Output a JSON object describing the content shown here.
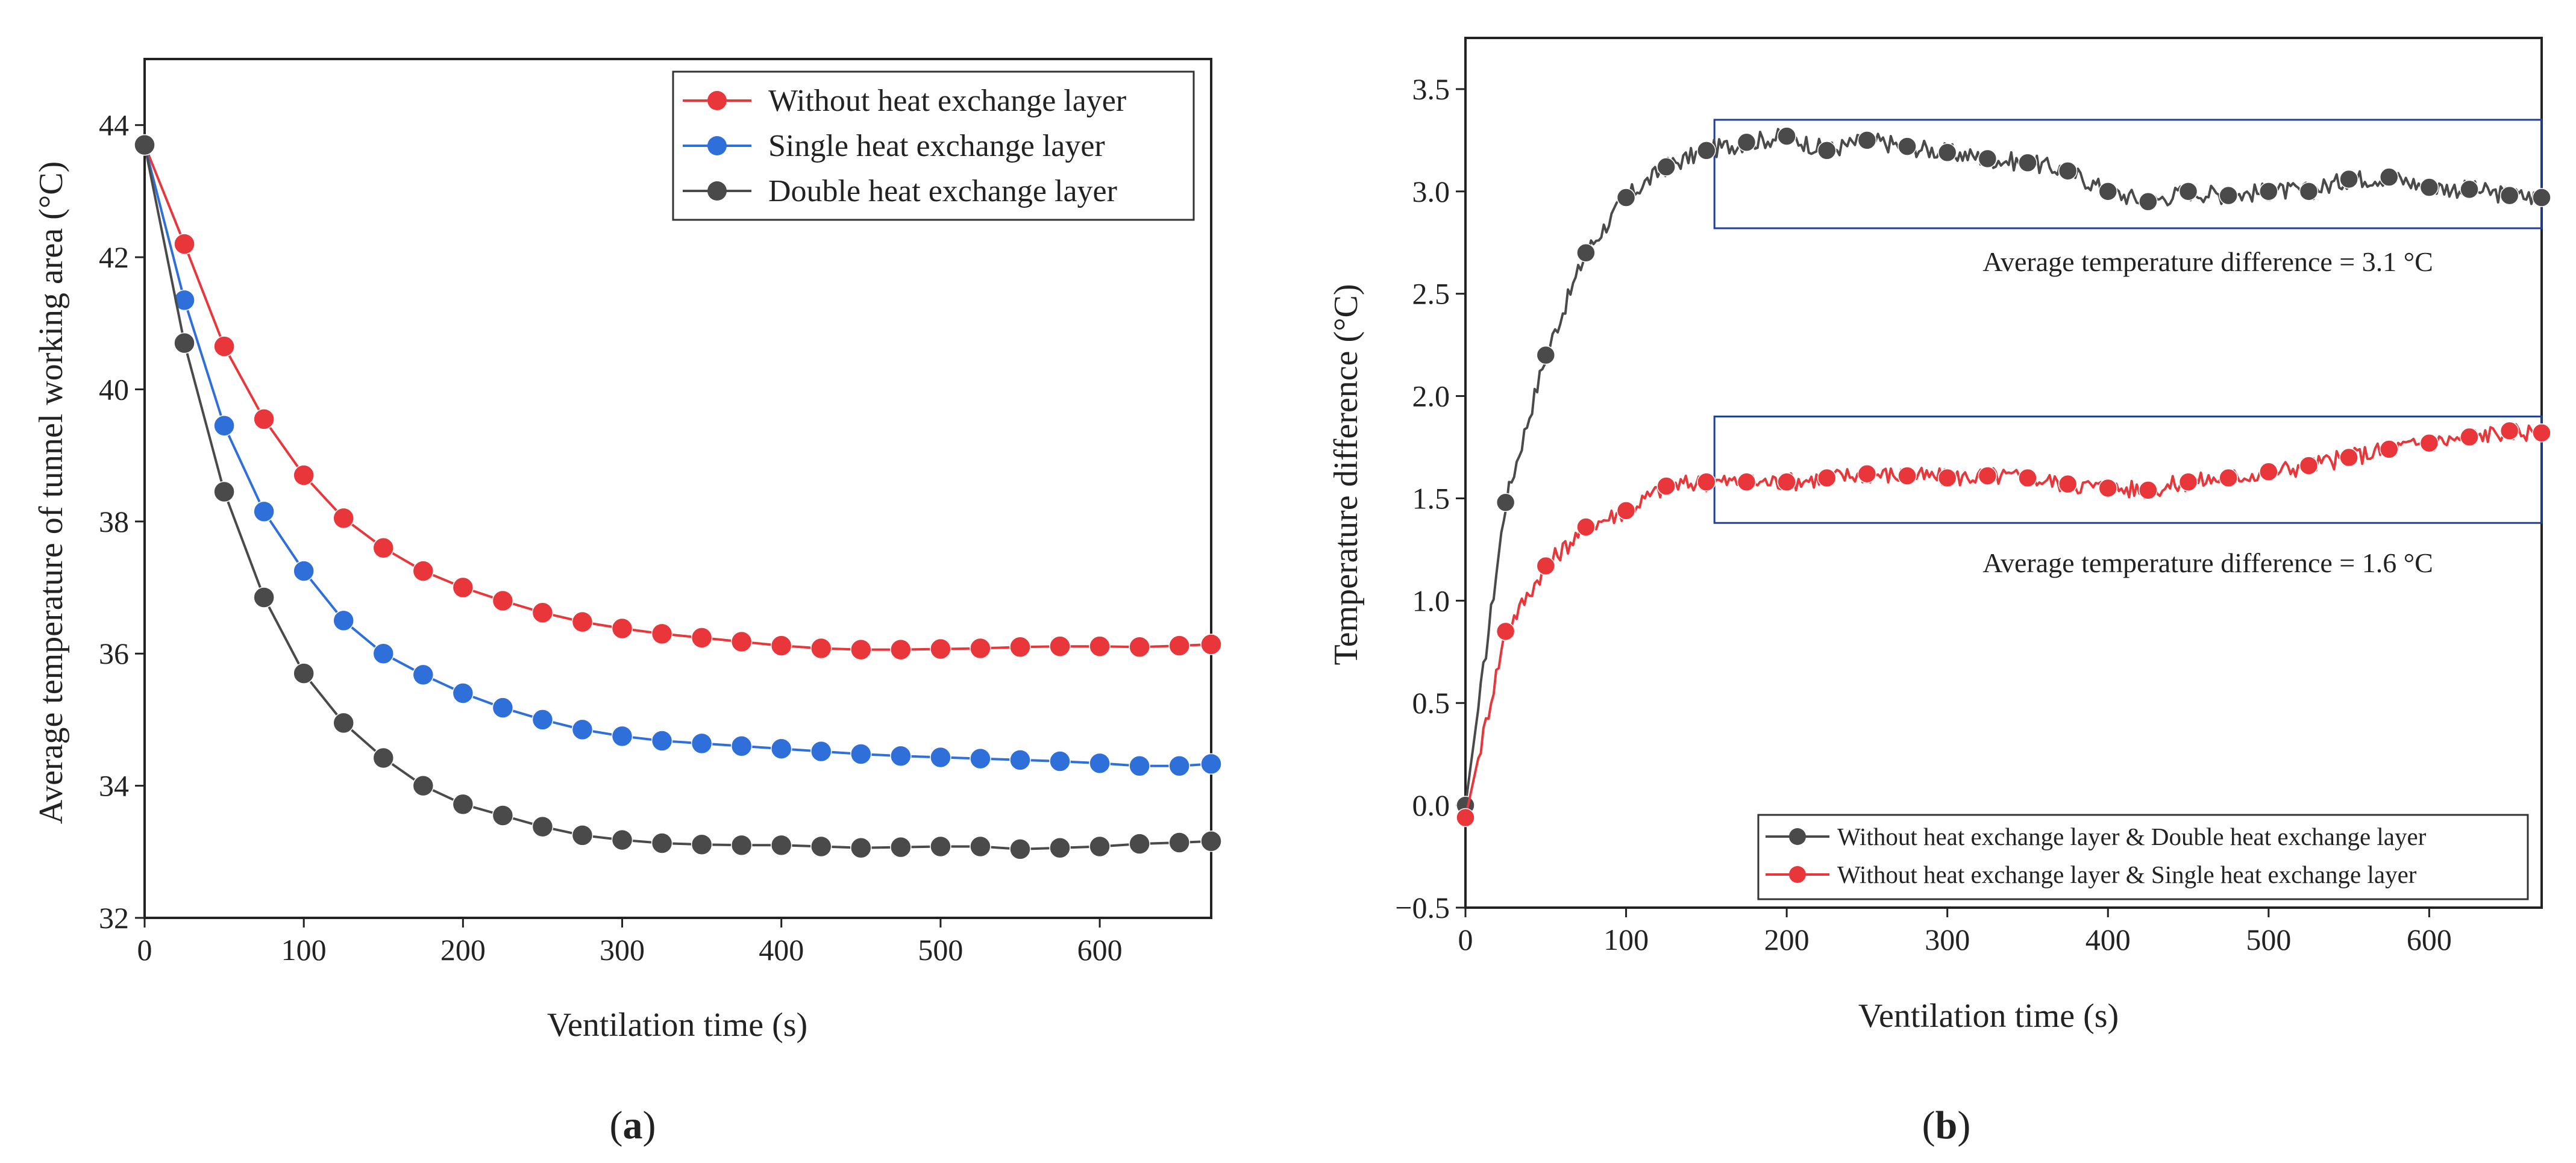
{
  "chart_data": [
    {
      "panel_label": "a",
      "type": "line",
      "xlabel": "Ventilation time (s)",
      "ylabel": "Average temperature of tunnel working area (°C)",
      "xlim": [
        0,
        670
      ],
      "ylim": [
        32,
        45
      ],
      "xticks": [
        0,
        100,
        200,
        300,
        400,
        500,
        600
      ],
      "yticks": [
        32,
        34,
        36,
        38,
        40,
        42,
        44
      ],
      "legend_position": "top-right",
      "x": [
        0,
        25,
        50,
        75,
        100,
        125,
        150,
        175,
        200,
        225,
        250,
        275,
        300,
        325,
        350,
        375,
        400,
        425,
        450,
        475,
        500,
        525,
        550,
        575,
        600,
        625,
        650,
        670
      ],
      "series": [
        {
          "name": "Without heat exchange layer",
          "color": "#e8363a",
          "values": [
            43.7,
            42.2,
            40.65,
            39.55,
            38.7,
            38.05,
            37.6,
            37.25,
            37.0,
            36.8,
            36.62,
            36.48,
            36.38,
            36.3,
            36.24,
            36.18,
            36.12,
            36.08,
            36.06,
            36.06,
            36.07,
            36.08,
            36.1,
            36.11,
            36.11,
            36.1,
            36.12,
            36.14
          ]
        },
        {
          "name": "Single heat exchange layer",
          "color": "#2f6fd9",
          "values": [
            43.7,
            41.35,
            39.45,
            38.15,
            37.25,
            36.5,
            36.0,
            35.68,
            35.4,
            35.18,
            35.0,
            34.85,
            34.75,
            34.68,
            34.64,
            34.6,
            34.56,
            34.52,
            34.48,
            34.45,
            34.43,
            34.41,
            34.39,
            34.37,
            34.34,
            34.3,
            34.3,
            34.33
          ]
        },
        {
          "name": "Double heat exchange layer",
          "color": "#4a4a4a",
          "values": [
            43.7,
            40.7,
            38.45,
            36.85,
            35.7,
            34.95,
            34.42,
            34.0,
            33.72,
            33.55,
            33.38,
            33.25,
            33.18,
            33.13,
            33.11,
            33.1,
            33.1,
            33.08,
            33.06,
            33.07,
            33.08,
            33.08,
            33.04,
            33.06,
            33.08,
            33.12,
            33.14,
            33.16
          ]
        }
      ]
    },
    {
      "panel_label": "b",
      "type": "line",
      "xlabel": "Ventilation time (s)",
      "ylabel": "Temperature difference (°C)",
      "xlim": [
        0,
        670
      ],
      "ylim": [
        -0.5,
        3.75
      ],
      "xticks": [
        0,
        100,
        200,
        300,
        400,
        500,
        600
      ],
      "yticks": [
        -0.5,
        0.0,
        0.5,
        1.0,
        1.5,
        2.0,
        2.5,
        3.0,
        3.5
      ],
      "ytick_labels": [
        "−0.5",
        "0.0",
        "0.5",
        "1.0",
        "1.5",
        "2.0",
        "2.5",
        "3.0",
        "3.5"
      ],
      "legend_position": "bottom-right",
      "x": [
        0,
        25,
        50,
        75,
        100,
        125,
        150,
        175,
        200,
        225,
        250,
        275,
        300,
        325,
        350,
        375,
        400,
        425,
        450,
        475,
        500,
        525,
        550,
        575,
        600,
        625,
        650,
        670
      ],
      "series": [
        {
          "name": "Without heat exchange layer & Double heat exchange layer",
          "color": "#4a4a4a",
          "values": [
            0.0,
            1.48,
            2.2,
            2.7,
            2.97,
            3.12,
            3.2,
            3.24,
            3.27,
            3.2,
            3.25,
            3.22,
            3.19,
            3.16,
            3.14,
            3.1,
            3.0,
            2.95,
            3.0,
            2.98,
            3.0,
            3.0,
            3.06,
            3.07,
            3.02,
            3.01,
            2.98,
            2.97
          ]
        },
        {
          "name": "Without heat exchange layer & Single heat exchange layer",
          "color": "#e8363a",
          "values": [
            -0.06,
            0.85,
            1.17,
            1.36,
            1.44,
            1.56,
            1.58,
            1.58,
            1.58,
            1.6,
            1.62,
            1.61,
            1.6,
            1.61,
            1.6,
            1.57,
            1.55,
            1.54,
            1.58,
            1.6,
            1.63,
            1.66,
            1.7,
            1.74,
            1.77,
            1.8,
            1.83,
            1.82
          ]
        }
      ],
      "annotations": [
        {
          "text": "Average temperature difference = 3.1 °C",
          "box_x": [
            155,
            670
          ],
          "box_y": [
            2.82,
            3.35
          ]
        },
        {
          "text": "Average temperature difference = 1.6 °C",
          "box_x": [
            155,
            670
          ],
          "box_y": [
            1.38,
            1.9
          ]
        }
      ]
    }
  ]
}
